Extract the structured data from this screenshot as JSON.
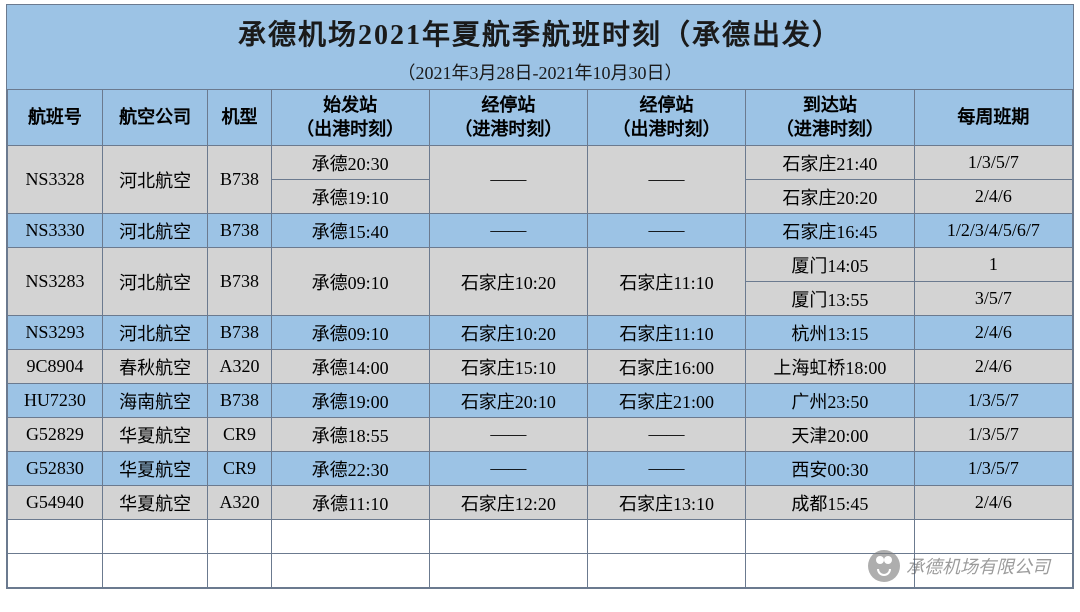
{
  "header": {
    "title": "承德机场2021年夏航季航班时刻（承德出发）",
    "subtitle": "（2021年3月28日-2021年10月30日）"
  },
  "columns": {
    "flight_no": "航班号",
    "airline": "航空公司",
    "aircraft": "机型",
    "origin": "始发站\n（出港时刻）",
    "stop_arr": "经停站\n（进港时刻）",
    "stop_dep": "经停站\n（出港时刻）",
    "dest": "到达站\n（进港时刻）",
    "days": "每周班期"
  },
  "rows": [
    {
      "flight": "NS3328",
      "airline": "河北航空",
      "aircraft": "B738",
      "origin": "承德20:30",
      "stop_arr": "——",
      "stop_dep": "——",
      "dest": "石家庄21:40",
      "days": "1/3/5/7",
      "sub": {
        "origin": "承德19:10",
        "dest": "石家庄20:20",
        "days": "2/4/6"
      }
    },
    {
      "flight": "NS3330",
      "airline": "河北航空",
      "aircraft": "B738",
      "origin": "承德15:40",
      "stop_arr": "——",
      "stop_dep": "——",
      "dest": "石家庄16:45",
      "days": "1/2/3/4/5/6/7"
    },
    {
      "flight": "NS3283",
      "airline": "河北航空",
      "aircraft": "B738",
      "origin": "承德09:10",
      "stop_arr": "石家庄10:20",
      "stop_dep": "石家庄11:10",
      "dest": "厦门14:05",
      "days": "1",
      "sub": {
        "dest": "厦门13:55",
        "days": "3/5/7"
      }
    },
    {
      "flight": "NS3293",
      "airline": "河北航空",
      "aircraft": "B738",
      "origin": "承德09:10",
      "stop_arr": "石家庄10:20",
      "stop_dep": "石家庄11:10",
      "dest": "杭州13:15",
      "days": "2/4/6"
    },
    {
      "flight": "9C8904",
      "airline": "春秋航空",
      "aircraft": "A320",
      "origin": "承德14:00",
      "stop_arr": "石家庄15:10",
      "stop_dep": "石家庄16:00",
      "dest": "上海虹桥18:00",
      "days": "2/4/6"
    },
    {
      "flight": "HU7230",
      "airline": "海南航空",
      "aircraft": "B738",
      "origin": "承德19:00",
      "stop_arr": "石家庄20:10",
      "stop_dep": "石家庄21:00",
      "dest": "广州23:50",
      "days": "1/3/5/7"
    },
    {
      "flight": "G52829",
      "airline": "华夏航空",
      "aircraft": "CR9",
      "origin": "承德18:55",
      "stop_arr": "——",
      "stop_dep": "——",
      "dest": "天津20:00",
      "days": "1/3/5/7"
    },
    {
      "flight": "G52830",
      "airline": "华夏航空",
      "aircraft": "CR9",
      "origin": "承德22:30",
      "stop_arr": "——",
      "stop_dep": "——",
      "dest": "西安00:30",
      "days": "1/3/5/7"
    },
    {
      "flight": "G54940",
      "airline": "华夏航空",
      "aircraft": "A320",
      "origin": "承德11:10",
      "stop_arr": "石家庄12:20",
      "stop_dep": "石家庄13:10",
      "dest": "成都15:45",
      "days": "2/4/6"
    }
  ],
  "watermark": "承德机场有限公司",
  "colors": {
    "header_bg": "#9cc3e5",
    "row_alt_bg": "#d3d3d3",
    "border": "#6b7a8f"
  }
}
